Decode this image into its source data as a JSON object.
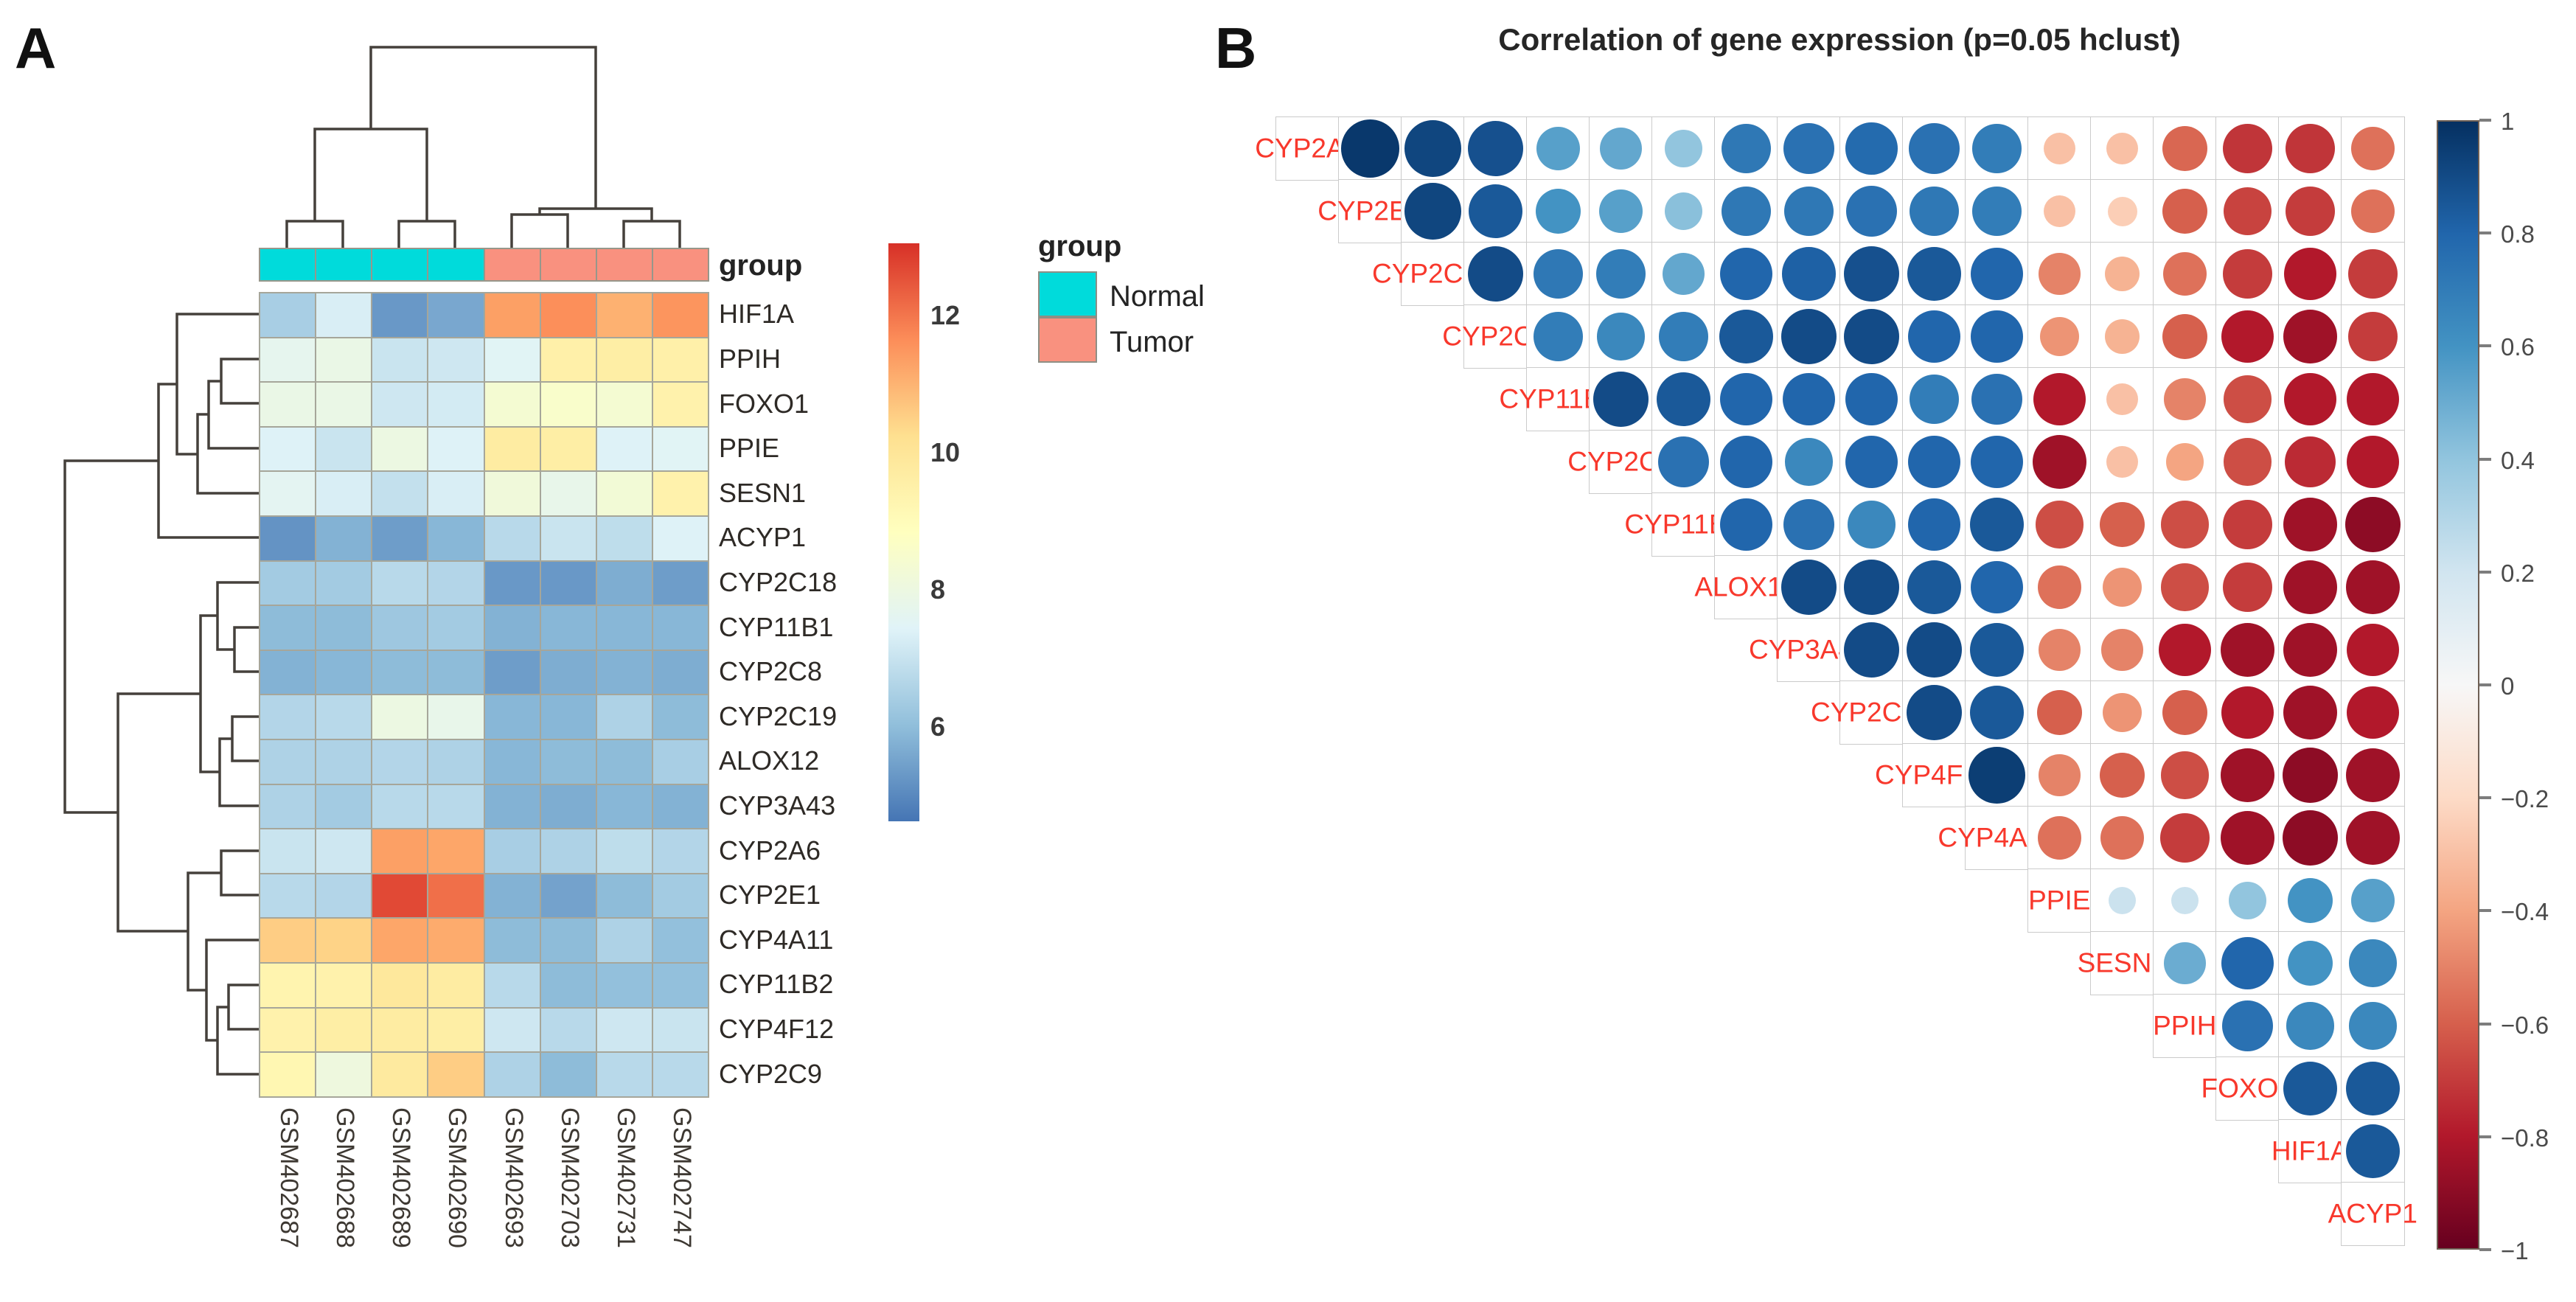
{
  "figure": {
    "panel_a_label": "A",
    "panel_b_label": "B"
  },
  "chart_data": [
    {
      "type": "heatmap",
      "name": "clustered gene expression heatmap",
      "columns": [
        "GSM402687",
        "GSM402688",
        "GSM402689",
        "GSM402690",
        "GSM402693",
        "GSM402703",
        "GSM402731",
        "GSM402747"
      ],
      "rows": [
        "HIF1A",
        "PPIH",
        "FOXO1",
        "PPIE",
        "SESN1",
        "ACYP1",
        "CYP2C18",
        "CYP11B1",
        "CYP2C8",
        "CYP2C19",
        "ALOX12",
        "CYP3A43",
        "CYP2A6",
        "CYP2E1",
        "CYP4A11",
        "CYP11B2",
        "CYP4F12",
        "CYP2C9"
      ],
      "values": [
        [
          6.3,
          7.2,
          5.1,
          5.4,
          11.4,
          11.7,
          11.1,
          11.6
        ],
        [
          7.6,
          7.8,
          6.9,
          7.0,
          7.4,
          9.5,
          9.6,
          9.5
        ],
        [
          7.8,
          7.8,
          7.0,
          7.1,
          8.3,
          8.5,
          8.3,
          9.4
        ],
        [
          7.3,
          6.9,
          7.9,
          7.3,
          9.7,
          9.6,
          7.3,
          7.4
        ],
        [
          7.5,
          7.2,
          6.8,
          7.2,
          8.1,
          7.7,
          8.2,
          9.4
        ],
        [
          5.0,
          5.6,
          5.2,
          5.7,
          6.6,
          6.9,
          6.7,
          7.3
        ],
        [
          6.2,
          6.2,
          6.6,
          6.5,
          5.1,
          5.1,
          5.5,
          5.2
        ],
        [
          5.8,
          5.8,
          6.1,
          6.2,
          5.6,
          5.7,
          5.7,
          5.7
        ],
        [
          5.6,
          5.7,
          5.8,
          5.8,
          5.2,
          5.5,
          5.6,
          5.5
        ],
        [
          6.5,
          6.6,
          7.9,
          7.7,
          5.7,
          5.7,
          6.4,
          5.8
        ],
        [
          6.4,
          6.4,
          6.5,
          6.4,
          5.7,
          5.8,
          5.8,
          6.3
        ],
        [
          6.4,
          6.2,
          6.6,
          6.6,
          5.6,
          5.5,
          5.7,
          5.6
        ],
        [
          6.9,
          7.0,
          11.4,
          11.3,
          6.3,
          6.4,
          6.7,
          6.5
        ],
        [
          6.6,
          6.5,
          12.8,
          12.2,
          5.6,
          5.3,
          5.8,
          6.2
        ],
        [
          10.6,
          10.5,
          11.3,
          11.2,
          5.8,
          5.8,
          6.4,
          5.9
        ],
        [
          9.3,
          9.4,
          9.9,
          9.7,
          6.6,
          5.8,
          5.9,
          5.9
        ],
        [
          9.4,
          9.6,
          9.7,
          9.6,
          7.0,
          6.6,
          7.0,
          6.9
        ],
        [
          9.2,
          8.0,
          9.8,
          10.6,
          6.4,
          5.8,
          6.6,
          6.6
        ]
      ],
      "value_domain": [
        4.4,
        13.2
      ],
      "palette_low_to_high": [
        "#4575b4",
        "#91bfdb",
        "#e0f3f8",
        "#ffffbf",
        "#fee090",
        "#fc8d59",
        "#d73027"
      ],
      "colorbar_ticks": [
        12,
        10,
        8,
        6
      ],
      "column_groups": [
        "Normal",
        "Normal",
        "Normal",
        "Normal",
        "Tumor",
        "Tumor",
        "Tumor",
        "Tumor"
      ],
      "annotation_row_label": "group",
      "legend": {
        "title": "group",
        "items": [
          {
            "label": "Normal",
            "color": "#00DBDB"
          },
          {
            "label": "Tumor",
            "color": "#F9917F"
          }
        ]
      },
      "grid": true,
      "dendrograms": {
        "columns": "two clusters: ((GSM402687,GSM402688),(GSM402689,GSM402690)) vs ((GSM402693,GSM402703),(GSM402731,GSM402747))",
        "rows": "cluster(HIF1A,PPIH,FOXO1,PPIE,SESN1,ACYP1) vs cluster(CYP2C18,CYP11B1,CYP2C8,CYP2C19,ALOX12,CYP3A43 | CYP2A6,CYP2E1,CYP4A11,CYP11B2,CYP4F12,CYP2C9)"
      }
    },
    {
      "type": "correlation-matrix",
      "title": "Correlation of gene expression (p=0.05 hclust)",
      "layout": "upper-triangle, labels on diagonal",
      "genes": [
        "CYP2A6",
        "CYP2E1",
        "CYP2C19",
        "CYP2C9",
        "CYP11B1",
        "CYP2C8",
        "CYP11B2",
        "ALOX12",
        "CYP3A43",
        "CYP2C18",
        "CYP4F12",
        "CYP4A11",
        "PPIE",
        "SESN1",
        "PPIH",
        "FOXO1",
        "HIF1A",
        "ACYP1"
      ],
      "rows": [
        {
          "gene": "CYP2A6",
          "values": [
            0.97,
            0.92,
            0.88,
            0.55,
            0.52,
            0.4,
            0.72,
            0.75,
            0.78,
            0.75,
            0.7,
            -0.3,
            -0.3,
            -0.58,
            -0.72,
            -0.72,
            -0.55
          ]
        },
        {
          "gene": "CYP2E1",
          "values": [
            0.92,
            0.85,
            0.6,
            0.55,
            0.42,
            0.72,
            0.72,
            0.75,
            0.72,
            0.7,
            -0.3,
            -0.25,
            -0.6,
            -0.68,
            -0.7,
            -0.55
          ]
        },
        {
          "gene": "CYP2C19",
          "values": [
            0.9,
            0.72,
            0.7,
            0.52,
            0.8,
            0.82,
            0.88,
            0.85,
            0.8,
            -0.5,
            -0.35,
            -0.55,
            -0.7,
            -0.8,
            -0.7
          ]
        },
        {
          "gene": "CYP2C9",
          "values": [
            0.7,
            0.65,
            0.7,
            0.85,
            0.9,
            0.9,
            0.8,
            0.8,
            -0.45,
            -0.35,
            -0.6,
            -0.8,
            -0.85,
            -0.7
          ]
        },
        {
          "gene": "CYP11B1",
          "values": [
            0.9,
            0.85,
            0.8,
            0.8,
            0.8,
            0.7,
            0.75,
            -0.8,
            -0.3,
            -0.5,
            -0.65,
            -0.8,
            -0.8
          ]
        },
        {
          "gene": "CYP2C8",
          "values": [
            0.75,
            0.8,
            0.65,
            0.8,
            0.8,
            0.8,
            -0.85,
            -0.3,
            -0.4,
            -0.65,
            -0.75,
            -0.8
          ]
        },
        {
          "gene": "CYP11B2",
          "values": [
            0.8,
            0.75,
            0.65,
            0.8,
            0.85,
            -0.65,
            -0.6,
            -0.65,
            -0.7,
            -0.85,
            -0.9
          ]
        },
        {
          "gene": "ALOX12",
          "values": [
            0.9,
            0.9,
            0.85,
            0.8,
            -0.55,
            -0.45,
            -0.65,
            -0.7,
            -0.85,
            -0.85
          ]
        },
        {
          "gene": "CYP3A43",
          "values": [
            0.9,
            0.9,
            0.85,
            -0.5,
            -0.5,
            -0.8,
            -0.85,
            -0.85,
            -0.8
          ]
        },
        {
          "gene": "CYP2C18",
          "values": [
            0.9,
            0.85,
            -0.6,
            -0.45,
            -0.6,
            -0.8,
            -0.85,
            -0.8
          ]
        },
        {
          "gene": "CYP4F12",
          "values": [
            0.95,
            -0.5,
            -0.6,
            -0.65,
            -0.85,
            -0.9,
            -0.85
          ]
        },
        {
          "gene": "CYP4A11",
          "values": [
            -0.55,
            -0.55,
            -0.7,
            -0.85,
            -0.9,
            -0.85
          ]
        },
        {
          "gene": "PPIE",
          "values": [
            0.22,
            0.22,
            0.4,
            0.6,
            0.55
          ]
        },
        {
          "gene": "SESN1",
          "values": [
            0.5,
            0.8,
            0.6,
            0.65
          ]
        },
        {
          "gene": "PPIH",
          "values": [
            0.75,
            0.65,
            0.65
          ]
        },
        {
          "gene": "FOXO1",
          "values": [
            0.85,
            0.85
          ]
        },
        {
          "gene": "HIF1A",
          "values": [
            0.85
          ]
        }
      ],
      "value_range": [
        -1,
        1
      ],
      "palette_pos_to_neg": [
        "#053061",
        "#2166ac",
        "#4393c3",
        "#92c5de",
        "#d1e5f0",
        "#f7f7f7",
        "#fddbc7",
        "#f4a582",
        "#d6604d",
        "#b2182b",
        "#67001f"
      ],
      "colorbar_ticks": [
        "1",
        "0.8",
        "0.6",
        "0.4",
        "0.2",
        "0",
        "−0.2",
        "−0.4",
        "−0.6",
        "−0.8",
        "−1"
      ],
      "label_color": "#F8382C"
    }
  ]
}
